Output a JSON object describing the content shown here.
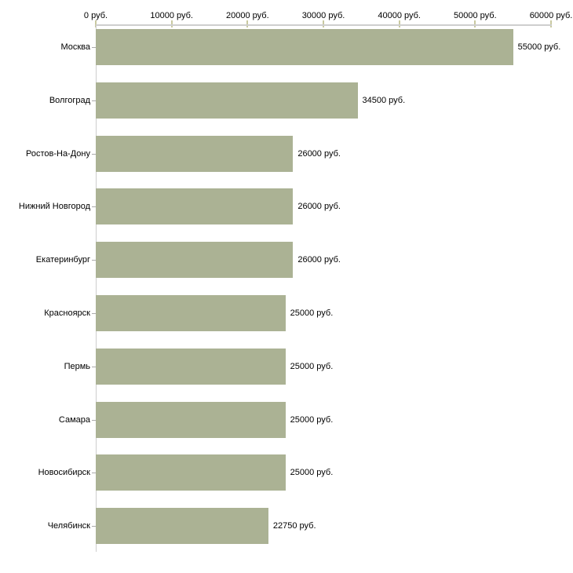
{
  "chart_data": {
    "type": "bar",
    "orientation": "horizontal",
    "title": "",
    "xlabel": "",
    "ylabel": "",
    "xlim": [
      0,
      60000
    ],
    "unit": "руб.",
    "grid": false,
    "legend": null,
    "x_ticks": [
      {
        "value": 0,
        "label": "0 руб."
      },
      {
        "value": 10000,
        "label": "10000 руб."
      },
      {
        "value": 20000,
        "label": "20000 руб."
      },
      {
        "value": 30000,
        "label": "30000 руб."
      },
      {
        "value": 40000,
        "label": "40000 руб."
      },
      {
        "value": 50000,
        "label": "50000 руб."
      },
      {
        "value": 60000,
        "label": "60000 руб."
      }
    ],
    "categories": [
      "Москва",
      "Волгоград",
      "Ростов-На-Дону",
      "Нижний Новгород",
      "Екатеринбург",
      "Красноярск",
      "Пермь",
      "Самара",
      "Новосибирск",
      "Челябинск"
    ],
    "values": [
      55000,
      34500,
      26000,
      26000,
      26000,
      25000,
      25000,
      25000,
      25000,
      22750
    ],
    "bars": [
      {
        "category": "Москва",
        "value": 55000,
        "value_label": "55000 руб."
      },
      {
        "category": "Волгоград",
        "value": 34500,
        "value_label": "34500 руб."
      },
      {
        "category": "Ростов-На-Дону",
        "value": 26000,
        "value_label": "26000 руб."
      },
      {
        "category": "Нижний Новгород",
        "value": 26000,
        "value_label": "26000 руб."
      },
      {
        "category": "Екатеринбург",
        "value": 26000,
        "value_label": "26000 руб."
      },
      {
        "category": "Красноярск",
        "value": 25000,
        "value_label": "25000 руб."
      },
      {
        "category": "Пермь",
        "value": 25000,
        "value_label": "25000 руб."
      },
      {
        "category": "Самара",
        "value": 25000,
        "value_label": "25000 руб."
      },
      {
        "category": "Новосибирск",
        "value": 25000,
        "value_label": "25000 руб."
      },
      {
        "category": "Челябинск",
        "value": 22750,
        "value_label": "22750 руб."
      }
    ],
    "colors": {
      "bar": "#abb294",
      "axis_line": "#cecece",
      "x_tick": "#c9c9a0",
      "y_tick": "#aaaaaa",
      "text": "#000000",
      "background": "#ffffff"
    }
  }
}
